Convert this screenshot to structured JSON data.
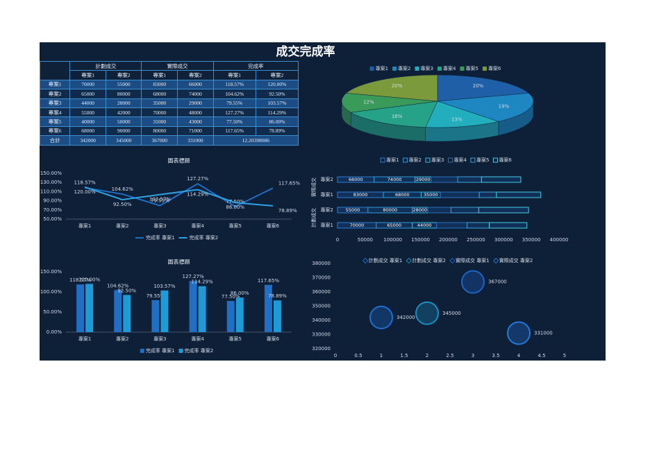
{
  "title": "成交完成率",
  "table": {
    "groups": [
      "計劃成交",
      "實際成交",
      "完成率"
    ],
    "subheaders": [
      "專案1",
      "專案2",
      "專案1",
      "專案2",
      "專案1",
      "專案2"
    ],
    "rows": [
      [
        "專案1",
        "70000",
        "55000",
        "83000",
        "66000",
        "118.57%",
        "120.00%"
      ],
      [
        "專案2",
        "65000",
        "80000",
        "68000",
        "74000",
        "104.62%",
        "92.50%"
      ],
      [
        "專案3",
        "44000",
        "28000",
        "35000",
        "29000",
        "79.55%",
        "103.57%"
      ],
      [
        "專案4",
        "55000",
        "42000",
        "70000",
        "48000",
        "127.27%",
        "114.29%"
      ],
      [
        "專案5",
        "40000",
        "50000",
        "31000",
        "43000",
        "77.50%",
        "86.00%"
      ],
      [
        "專案6",
        "68000",
        "90000",
        "80000",
        "71000",
        "117.65%",
        "78.89%"
      ]
    ],
    "total": [
      "合計",
      "342000",
      "345000",
      "367000",
      "331000",
      "12.20398086"
    ]
  },
  "chart_data": [
    {
      "type": "pie",
      "categories": [
        "專案1",
        "專案2",
        "專案3",
        "專案4",
        "專案5",
        "專案6"
      ],
      "values": [
        20,
        19,
        13,
        16,
        12,
        20
      ],
      "value_labels": [
        "20%",
        "19%",
        "13%",
        "16%",
        "12%",
        "20%"
      ],
      "colors": [
        "#1f5fa8",
        "#1e86c0",
        "#22aebd",
        "#25a287",
        "#3a9a5a",
        "#7b9a3c"
      ],
      "legend": "top"
    },
    {
      "type": "bar",
      "orientation": "horizontal",
      "stacked": true,
      "category_groups": [
        "計劃成交",
        "實際成交"
      ],
      "categories": [
        "專案1",
        "專案2",
        "專案1",
        "專案2"
      ],
      "series": [
        {
          "name": "專案1",
          "color": "#2e7fd6",
          "values": [
            70000,
            55000,
            83000,
            66000
          ],
          "data_labels": true
        },
        {
          "name": "專案2",
          "color": "#2f9be0",
          "values": [
            65000,
            80000,
            68000,
            74000
          ],
          "data_labels": true
        },
        {
          "name": "專案3",
          "color": "#35c0e0",
          "values": [
            44000,
            28000,
            35000,
            29000
          ],
          "data_labels": true
        },
        {
          "name": "專案4",
          "color": "#2a6fc0",
          "values": [
            55000,
            42000,
            70000,
            48000
          ],
          "data_labels": false
        },
        {
          "name": "專案5",
          "color": "#3aa6d8",
          "values": [
            40000,
            50000,
            31000,
            43000
          ],
          "data_labels": false
        },
        {
          "name": "專案6",
          "color": "#45d0e8",
          "values": [
            68000,
            90000,
            80000,
            71000
          ],
          "data_labels": false
        }
      ],
      "xlim": [
        0,
        400000
      ],
      "xticks": [
        0,
        50000,
        100000,
        150000,
        200000,
        250000,
        300000,
        350000,
        400000
      ],
      "legend": "top"
    },
    {
      "type": "line",
      "title": "圖表標題",
      "categories": [
        "專案1",
        "專案2",
        "專案3",
        "專案4",
        "專案5",
        "專案6"
      ],
      "series": [
        {
          "name": "完成率 專案1",
          "color": "#1f6fc5",
          "values": [
            118.57,
            104.62,
            79.55,
            127.27,
            77.5,
            117.65
          ],
          "value_labels": [
            "118.57%",
            "104.62%",
            "79.55%",
            "127.27%",
            "77.50%",
            "117.65%"
          ]
        },
        {
          "name": "完成率 專案2",
          "color": "#2ea3e3",
          "values": [
            120,
            92.5,
            103.57,
            114.29,
            86,
            78.89
          ],
          "value_labels": [
            "120.00%",
            "92.50%",
            "103.57%",
            "114.29%",
            "86.00%",
            "78.89%"
          ]
        }
      ],
      "ylim": [
        50,
        150
      ],
      "yticks": [
        {
          "value": 50,
          "label": "50.00%"
        },
        {
          "value": 70,
          "label": "70.00%"
        },
        {
          "value": 90,
          "label": "90.00%"
        },
        {
          "value": 110,
          "label": "110.00%"
        },
        {
          "value": 130,
          "label": "130.00%"
        },
        {
          "value": 150,
          "label": "150.00%"
        }
      ],
      "legend": "bottom"
    },
    {
      "type": "bar",
      "title": "圖表標題",
      "categories": [
        "專案1",
        "專案2",
        "專案3",
        "專案4",
        "專案5",
        "專案6"
      ],
      "series": [
        {
          "name": "完成率 專案1",
          "color": "#1f6fc5",
          "values": [
            118.57,
            104.62,
            79.55,
            127.27,
            77.5,
            117.65
          ],
          "value_labels": [
            "118.57%",
            "104.62%",
            "79.55%",
            "127.27%",
            "77.50%",
            "117.65%"
          ]
        },
        {
          "name": "完成率 專案2",
          "color": "#1e9ad6",
          "values": [
            120,
            92.5,
            103.57,
            114.29,
            86,
            78.89
          ],
          "value_labels": [
            "120.00%",
            "92.50%",
            "103.57%",
            "114.29%",
            "86.00%",
            "78.89%"
          ]
        }
      ],
      "ylim": [
        0,
        150
      ],
      "yticks": [
        {
          "value": 0,
          "label": "0.00%"
        },
        {
          "value": 50,
          "label": "50.00%"
        },
        {
          "value": 100,
          "label": "100.00%"
        },
        {
          "value": 150,
          "label": "150.00%"
        }
      ],
      "legend": "bottom"
    },
    {
      "type": "scatter",
      "bubble": true,
      "series": [
        {
          "name": "計劃成交 專案1",
          "color": "#1e6fd0",
          "x": [
            1
          ],
          "values": [
            342000
          ]
        },
        {
          "name": "計劃成交 專案2",
          "color": "#1a8fc0",
          "x": [
            2
          ],
          "values": [
            345000
          ]
        },
        {
          "name": "實際成交 專案1",
          "color": "#1f64c8",
          "x": [
            3
          ],
          "values": [
            367000
          ]
        },
        {
          "name": "實際成交 專案2",
          "color": "#2378d8",
          "x": [
            4
          ],
          "values": [
            331000
          ]
        }
      ],
      "xlim": [
        0,
        5
      ],
      "xticks": [
        0,
        0.5,
        1,
        1.5,
        2,
        2.5,
        3,
        3.5,
        4,
        4.5,
        5
      ],
      "ylim": [
        320000,
        380000
      ],
      "yticks": [
        320000,
        330000,
        340000,
        350000,
        360000,
        370000,
        380000
      ],
      "legend": "top"
    }
  ]
}
